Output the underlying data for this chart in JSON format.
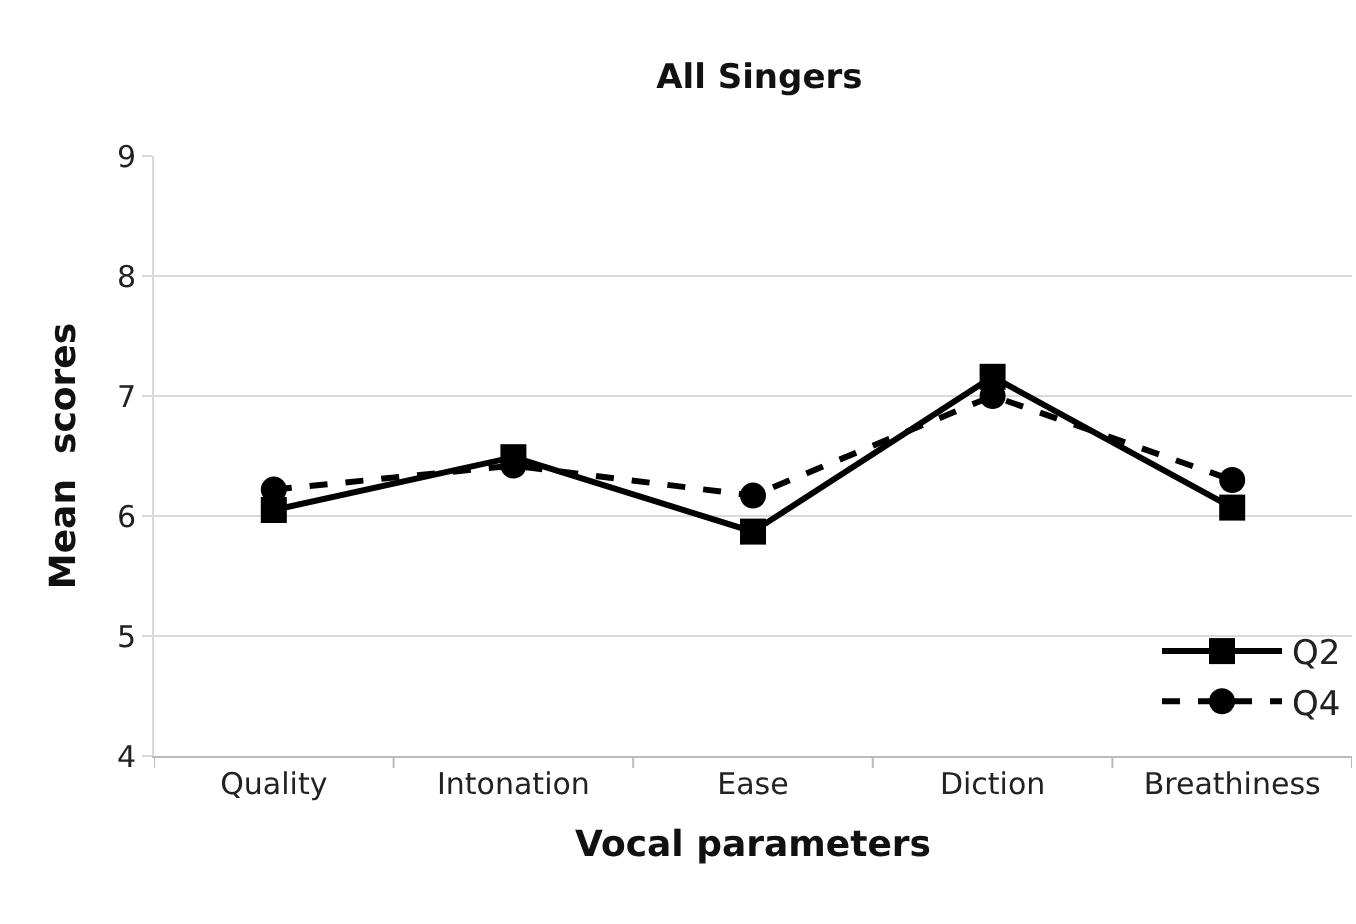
{
  "chart_data": {
    "type": "line",
    "title": "All Singers",
    "xlabel": "Vocal parameters",
    "ylabel": "Mean  scores",
    "categories": [
      "Quality",
      "Intonation",
      "Ease",
      "Diction",
      "Breathiness"
    ],
    "series": [
      {
        "name": "Q2",
        "color": "#000000",
        "marker": "square",
        "line_style": "solid",
        "values": [
          6.05,
          6.49,
          5.87,
          7.16,
          6.07
        ]
      },
      {
        "name": "Q4",
        "color": "#000000",
        "marker": "circle",
        "line_style": "dashed",
        "values": [
          6.22,
          6.42,
          6.17,
          7.0,
          6.3
        ]
      }
    ],
    "ylim": [
      4,
      9
    ],
    "yticks": [
      4,
      5,
      6,
      7,
      8,
      9
    ],
    "grid": "y",
    "legend": "bottom right"
  }
}
